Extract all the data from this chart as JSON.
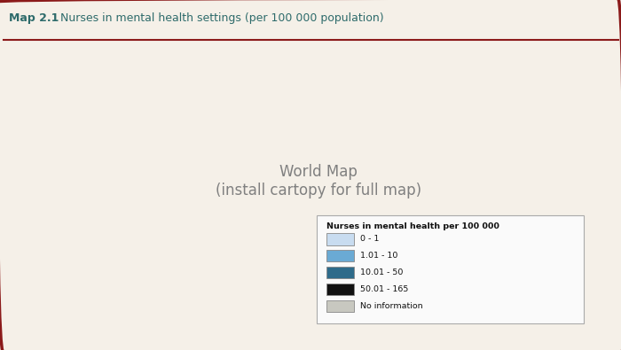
{
  "title_bold": "Map 2.1",
  "title_regular": "    Nurses in mental health settings (per 100 000 population)",
  "title_color": "#2E6B6B",
  "border_color": "#8B1A1A",
  "background_color": "#F5F0E8",
  "map_bg_color": "#F0EBE0",
  "legend_title": "Nurses in mental health per 100 000",
  "legend_items": [
    {
      "label": "0 - 1",
      "color": "#C8DCF0"
    },
    {
      "label": "1.01 - 10",
      "color": "#6AAAD4"
    },
    {
      "label": "10.01 - 50",
      "color": "#2E6B8A"
    },
    {
      "label": "50.01 - 165",
      "color": "#111111"
    },
    {
      "label": "No information",
      "color": "#C8C8C0"
    }
  ],
  "country_edge_color": "#FFFFFF",
  "country_edge_width": 0.3,
  "figsize": [
    7.0,
    3.95
  ],
  "dpi": 100
}
